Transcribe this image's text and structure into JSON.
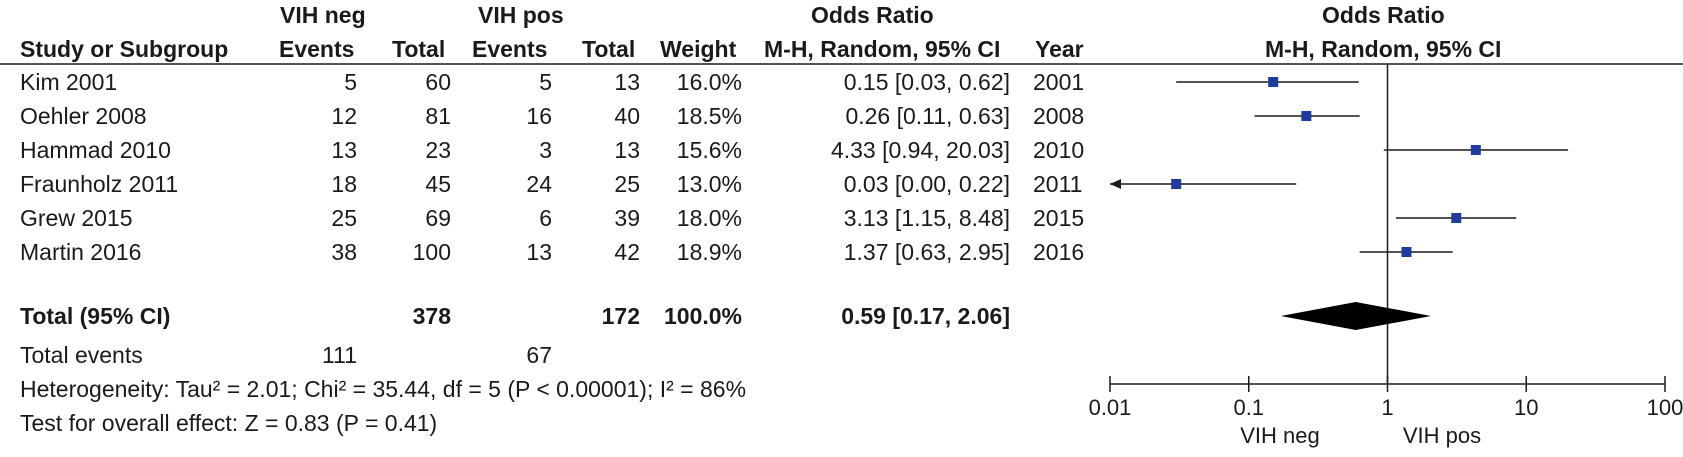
{
  "header": {
    "group1": "VIH neg",
    "group2": "VIH pos",
    "or_title": "Odds Ratio",
    "plot_title": "Odds Ratio",
    "study": "Study or Subgroup",
    "events1": "Events",
    "total1": "Total",
    "events2": "Events",
    "total2": "Total",
    "weight": "Weight",
    "method": "M-H, Random, 95% CI",
    "year": "Year",
    "plot_method": "M-H, Random, 95% CI"
  },
  "rows": [
    {
      "study": "Kim 2001",
      "events1": "5",
      "total1": "60",
      "events2": "5",
      "total2": "13",
      "weight": "16.0%",
      "ci": "0.15 [0.03, 0.62]",
      "year": "2001"
    },
    {
      "study": "Oehler 2008",
      "events1": "12",
      "total1": "81",
      "events2": "16",
      "total2": "40",
      "weight": "18.5%",
      "ci": "0.26 [0.11, 0.63]",
      "year": "2008"
    },
    {
      "study": "Hammad 2010",
      "events1": "13",
      "total1": "23",
      "events2": "3",
      "total2": "13",
      "weight": "15.6%",
      "ci": "4.33 [0.94, 20.03]",
      "year": "2010"
    },
    {
      "study": "Fraunholz 2011",
      "events1": "18",
      "total1": "45",
      "events2": "24",
      "total2": "25",
      "weight": "13.0%",
      "ci": "0.03 [0.00, 0.22]",
      "year": "2011"
    },
    {
      "study": "Grew 2015",
      "events1": "25",
      "total1": "69",
      "events2": "6",
      "total2": "39",
      "weight": "18.0%",
      "ci": "3.13 [1.15, 8.48]",
      "year": "2015"
    },
    {
      "study": "Martin 2016",
      "events1": "38",
      "total1": "100",
      "events2": "13",
      "total2": "42",
      "weight": "18.9%",
      "ci": "1.37 [0.63, 2.95]",
      "year": "2016"
    }
  ],
  "total": {
    "label": "Total (95% CI)",
    "total1": "378",
    "total2": "172",
    "weight": "100.0%",
    "ci": "0.59 [0.17, 2.06]"
  },
  "total_events": {
    "label": "Total events",
    "events1": "111",
    "events2": "67"
  },
  "heterogeneity": "Heterogeneity: Tau² = 2.01; Chi² = 35.44, df = 5 (P < 0.00001); I² = 86%",
  "overall_effect": "Test for overall effect: Z = 0.83 (P = 0.41)",
  "chart_data": {
    "type": "scatter",
    "subtype": "forest",
    "title": "Odds Ratio",
    "subtitle": "M-H, Random, 95% CI",
    "x_scale": "log",
    "xlim": [
      0.01,
      100
    ],
    "x_ticks": [
      0.01,
      0.1,
      1,
      10,
      100
    ],
    "x_tick_labels": [
      "0.01",
      "0.1",
      "1",
      "10",
      "100"
    ],
    "reference_line": 1,
    "favours_left": "VIH neg",
    "favours_right": "VIH pos",
    "studies": [
      {
        "name": "Kim 2001",
        "or": 0.15,
        "lower": 0.03,
        "upper": 0.62
      },
      {
        "name": "Oehler 2008",
        "or": 0.26,
        "lower": 0.11,
        "upper": 0.63
      },
      {
        "name": "Hammad 2010",
        "or": 4.33,
        "lower": 0.94,
        "upper": 20.03
      },
      {
        "name": "Fraunholz 2011",
        "or": 0.03,
        "lower": 0.0,
        "upper": 0.22
      },
      {
        "name": "Grew 2015",
        "or": 3.13,
        "lower": 1.15,
        "upper": 8.48
      },
      {
        "name": "Martin 2016",
        "or": 1.37,
        "lower": 0.63,
        "upper": 2.95
      }
    ],
    "pooled": {
      "name": "Total (95% CI)",
      "or": 0.59,
      "lower": 0.17,
      "upper": 2.06
    },
    "marker_color": "#1f3c9a",
    "line_color": "#1a1a1a"
  }
}
